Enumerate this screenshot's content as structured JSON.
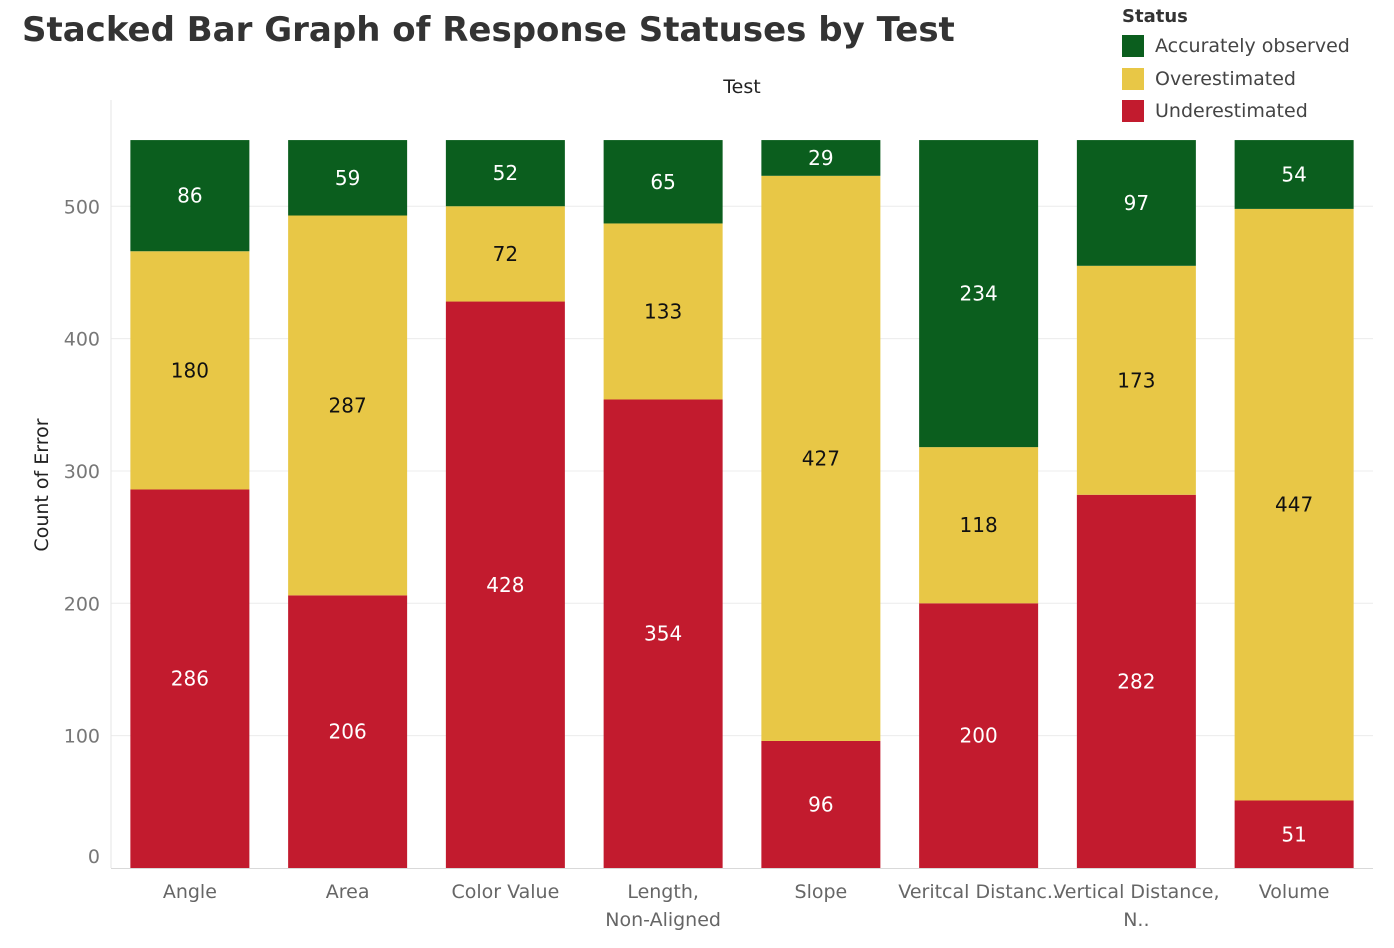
{
  "chart_data": {
    "type": "bar",
    "stacked": true,
    "title": "Stacked Bar Graph of Response Statuses by Test",
    "column_header": "Test",
    "ylabel": "Count of Error",
    "xlabel": "",
    "ylim": [
      0,
      550
    ],
    "yticks": [
      0,
      100,
      200,
      300,
      400,
      500
    ],
    "grid": true,
    "legend": {
      "title": "Status",
      "position": "top-right"
    },
    "categories": [
      "Angle",
      "Area",
      "Color Value",
      "Length, Non-Aligned",
      "Slope",
      "Veritcal Distanc..",
      "Vertical Distance, N..",
      "Volume"
    ],
    "series": [
      {
        "name": "Underestimated",
        "color": "#c21b2e",
        "label_color": "#ffffff",
        "values": [
          286,
          206,
          428,
          354,
          96,
          200,
          282,
          51
        ]
      },
      {
        "name": "Overestimated",
        "color": "#e8c746",
        "label_color": "#111111",
        "values": [
          180,
          287,
          72,
          133,
          427,
          118,
          173,
          447
        ]
      },
      {
        "name": "Accurately observed",
        "color": "#0b5e1e",
        "label_color": "#ffffff",
        "values": [
          86,
          59,
          52,
          65,
          29,
          234,
          97,
          54
        ]
      }
    ],
    "legend_order": [
      "Accurately observed",
      "Overestimated",
      "Underestimated"
    ]
  }
}
